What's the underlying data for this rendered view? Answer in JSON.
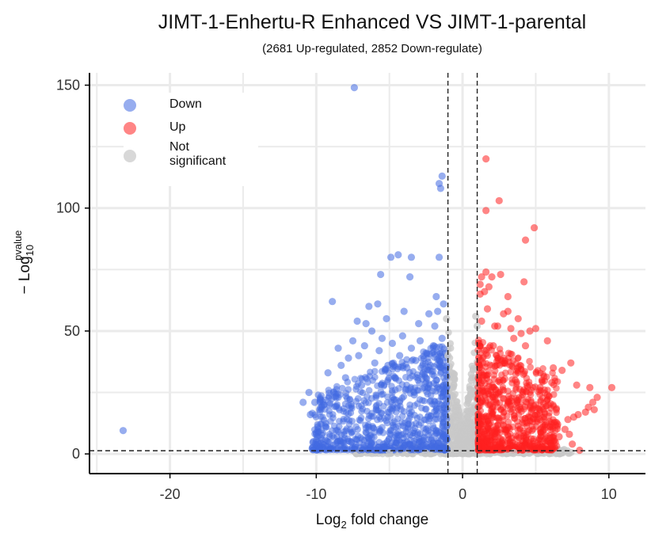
{
  "chart_data": {
    "type": "scatter",
    "title": "JIMT-1-Enhertu-R Enhanced VS JIMT-1-parental",
    "subtitle": "(2681 Up-regulated, 2852 Down-regulate)",
    "xlabel": {
      "prefix": "Log",
      "sub": "2",
      "suffix": " fold change"
    },
    "ylabel": {
      "prefix": "− Log",
      "sub": "10",
      "sup": "pvalue"
    },
    "xlim": [
      -25.5,
      12.5
    ],
    "ylim": [
      -8,
      155
    ],
    "xticks": [
      -20,
      -10,
      0,
      10
    ],
    "yticks": [
      0,
      50,
      100,
      150
    ],
    "grid": true,
    "thresholds": {
      "x": [
        -1,
        1
      ],
      "y": 1.3
    },
    "legend": {
      "position": "top-left",
      "entries": [
        {
          "label": "Down",
          "color": "#4169e1"
        },
        {
          "label": "Up",
          "color": "#ff2020"
        },
        {
          "label": "Not\nsignificant",
          "color": "#c8c8c8"
        }
      ]
    },
    "series": [
      {
        "name": "Down",
        "color": "#4169e1",
        "points": [
          [
            -23.2,
            9.5
          ],
          [
            -7.4,
            149
          ],
          [
            -1.4,
            113
          ],
          [
            -1.6,
            110
          ],
          [
            -1.5,
            108
          ],
          [
            -4.4,
            81
          ],
          [
            -4.9,
            80
          ],
          [
            -3.5,
            80
          ],
          [
            -1.6,
            80
          ],
          [
            -5.6,
            73
          ],
          [
            -3.6,
            72
          ],
          [
            -1.8,
            64
          ],
          [
            -8.9,
            62
          ],
          [
            -5.8,
            61
          ],
          [
            -6.4,
            60
          ],
          [
            -1.3,
            61
          ],
          [
            -7.2,
            54
          ],
          [
            -4.0,
            58
          ],
          [
            -2.3,
            57
          ],
          [
            -1.7,
            58
          ],
          [
            -5.2,
            55
          ],
          [
            -6.6,
            53
          ],
          [
            -3.0,
            53
          ],
          [
            -1.9,
            52
          ],
          [
            -10.1,
            21
          ],
          [
            -10.5,
            25
          ],
          [
            -10.9,
            21
          ],
          [
            -10.4,
            16
          ],
          [
            -10.2,
            5
          ],
          [
            -9.9,
            11
          ],
          [
            -9.5,
            20
          ],
          [
            -9.1,
            20
          ],
          [
            -8.8,
            25
          ],
          [
            -9.2,
            33
          ],
          [
            -8.5,
            43
          ],
          [
            -8.3,
            36
          ],
          [
            -8.0,
            31
          ],
          [
            -7.8,
            39
          ],
          [
            -7.5,
            46
          ],
          [
            -7.1,
            40
          ],
          [
            -6.9,
            28
          ],
          [
            -6.7,
            44
          ],
          [
            -6.2,
            50
          ],
          [
            -6.0,
            37
          ],
          [
            -5.7,
            42
          ],
          [
            -5.5,
            47
          ],
          [
            -5.1,
            36
          ],
          [
            -4.8,
            45
          ],
          [
            -4.6,
            31
          ],
          [
            -4.3,
            40
          ],
          [
            -4.1,
            48
          ],
          [
            -3.8,
            35
          ],
          [
            -3.5,
            43
          ],
          [
            -3.2,
            38
          ],
          [
            -2.9,
            46
          ],
          [
            -2.7,
            33
          ],
          [
            -2.5,
            41
          ],
          [
            -2.2,
            36
          ],
          [
            -2.0,
            44
          ],
          [
            -1.8,
            30
          ],
          [
            -1.6,
            38
          ],
          [
            -1.4,
            47
          ],
          [
            -1.3,
            28
          ],
          [
            -1.2,
            34
          ],
          [
            -8.6,
            2
          ],
          [
            -7.7,
            5
          ],
          [
            -6.3,
            3
          ],
          [
            -5.4,
            4
          ],
          [
            -9.7,
            22
          ],
          [
            -3.9,
            26
          ],
          [
            -4.7,
            22
          ],
          [
            -2.6,
            27
          ],
          [
            -3.3,
            24
          ],
          [
            -1.9,
            20
          ]
        ],
        "cloud": {
          "x_min": -10.3,
          "x_max": -1.05,
          "y_min": 1.5,
          "y_max": 60,
          "count": 800
        }
      },
      {
        "name": "Up",
        "color": "#ff2020",
        "points": [
          [
            1.6,
            120
          ],
          [
            2.5,
            103
          ],
          [
            1.6,
            99
          ],
          [
            4.9,
            92
          ],
          [
            4.3,
            87
          ],
          [
            1.6,
            74
          ],
          [
            2.6,
            73
          ],
          [
            1.3,
            72
          ],
          [
            2.0,
            72
          ],
          [
            1.2,
            69
          ],
          [
            4.2,
            70
          ],
          [
            1.8,
            68
          ],
          [
            1.5,
            66
          ],
          [
            3.1,
            64
          ],
          [
            1.2,
            65
          ],
          [
            1.7,
            59
          ],
          [
            3.1,
            58
          ],
          [
            2.8,
            57
          ],
          [
            3.8,
            55
          ],
          [
            1.3,
            54
          ],
          [
            2.2,
            52
          ],
          [
            2.4,
            52
          ],
          [
            3.3,
            51
          ],
          [
            4.6,
            50
          ],
          [
            4.0,
            49
          ],
          [
            5.0,
            51
          ],
          [
            5.8,
            46
          ],
          [
            4.3,
            44
          ],
          [
            3.5,
            47
          ],
          [
            7.4,
            37
          ],
          [
            6.2,
            35
          ],
          [
            6.8,
            34
          ],
          [
            8.7,
            27
          ],
          [
            7.8,
            28
          ],
          [
            6.1,
            29
          ],
          [
            5.3,
            27
          ],
          [
            10.2,
            27
          ],
          [
            9.2,
            23
          ],
          [
            8.9,
            21
          ],
          [
            8.6,
            19
          ],
          [
            8.4,
            17
          ],
          [
            9.0,
            18
          ],
          [
            7.9,
            16
          ],
          [
            7.6,
            15
          ],
          [
            7.2,
            14
          ],
          [
            6.5,
            12
          ],
          [
            6.0,
            11
          ],
          [
            5.6,
            10
          ],
          [
            5.3,
            14
          ],
          [
            7.0,
            10
          ],
          [
            7.3,
            8
          ],
          [
            6.6,
            7
          ],
          [
            8.0,
            1.5
          ],
          [
            7.5,
            4
          ],
          [
            5.0,
            20
          ],
          [
            4.1,
            24
          ],
          [
            3.6,
            30
          ],
          [
            2.7,
            38
          ],
          [
            2.1,
            44
          ],
          [
            1.5,
            42
          ],
          [
            5.8,
            24
          ],
          [
            6.4,
            18
          ],
          [
            4.7,
            17
          ],
          [
            3.9,
            19
          ]
        ],
        "cloud": {
          "x_min": 1.05,
          "x_max": 6.5,
          "y_min": 1.5,
          "y_max": 55,
          "count": 750
        }
      },
      {
        "name": "Not significant",
        "color": "#c8c8c8",
        "points": [
          [
            -1.1,
            55
          ],
          [
            -1.0,
            40
          ],
          [
            0.9,
            56
          ],
          [
            1.0,
            52
          ],
          [
            -0.6,
            28
          ],
          [
            0.6,
            30
          ],
          [
            0.3,
            5
          ],
          [
            -0.3,
            6
          ],
          [
            -2.5,
            0.4
          ],
          [
            3.5,
            0.6
          ],
          [
            -5.0,
            0.5
          ]
        ],
        "cloud": {
          "x_min": -7.5,
          "x_max": 7.5,
          "y_min": 0,
          "y_max": 60,
          "count": 700
        }
      }
    ]
  }
}
